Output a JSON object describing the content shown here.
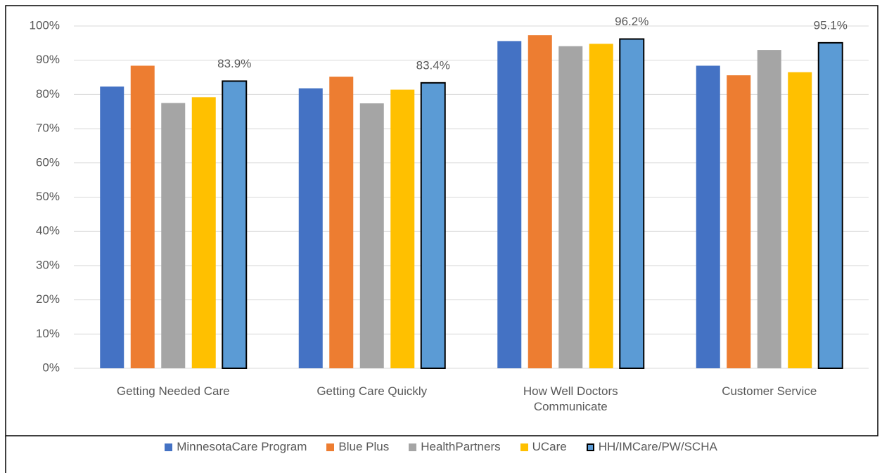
{
  "chart_data": {
    "type": "bar",
    "categories": [
      "Getting Needed Care",
      "Getting Care Quickly",
      "How Well Doctors Communicate",
      "Customer Service"
    ],
    "series": [
      {
        "name": "MinnesotaCare Program",
        "color": "#4472c4",
        "values": [
          82.3,
          81.8,
          95.6,
          88.4
        ]
      },
      {
        "name": "Blue Plus",
        "color": "#ed7d31",
        "values": [
          88.4,
          85.2,
          97.3,
          85.6
        ]
      },
      {
        "name": "HealthPartners",
        "color": "#a5a5a5",
        "values": [
          77.5,
          77.4,
          94.1,
          93.0
        ]
      },
      {
        "name": "UCare",
        "color": "#ffc000",
        "values": [
          79.2,
          81.4,
          94.8,
          86.5
        ]
      },
      {
        "name": "HH/IMCare/PW/SCHA",
        "color": "#5b9bd5",
        "outline": "#000000",
        "values": [
          83.9,
          83.4,
          96.2,
          95.1
        ],
        "value_labels": [
          "83.9%",
          "83.4%",
          "96.2%",
          "95.1%"
        ]
      }
    ],
    "ylim": [
      0,
      100
    ],
    "yticks": [
      {
        "value": 0,
        "label": "0%"
      },
      {
        "value": 10,
        "label": "10%"
      },
      {
        "value": 20,
        "label": "20%"
      },
      {
        "value": 30,
        "label": "30%"
      },
      {
        "value": 40,
        "label": "40%"
      },
      {
        "value": 50,
        "label": "50%"
      },
      {
        "value": 60,
        "label": "60%"
      },
      {
        "value": 70,
        "label": "70%"
      },
      {
        "value": 80,
        "label": "80%"
      },
      {
        "value": 90,
        "label": "90%"
      },
      {
        "value": 100,
        "label": "100%"
      }
    ],
    "grid": true,
    "legend": "bottom"
  }
}
